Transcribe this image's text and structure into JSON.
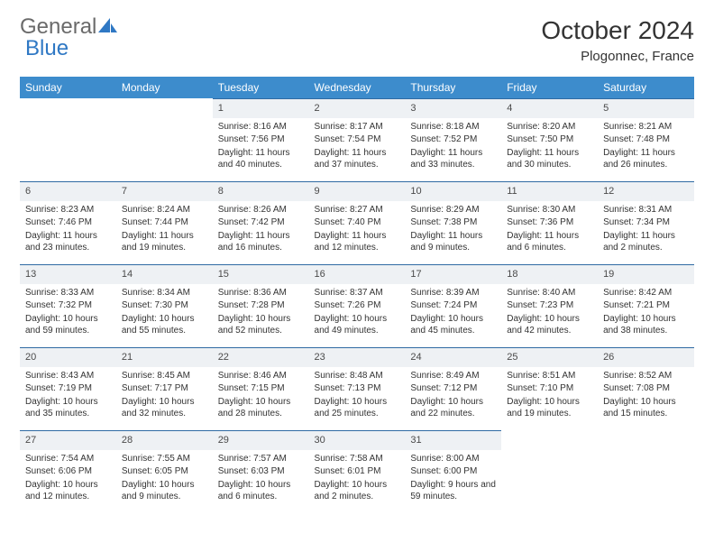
{
  "logo": {
    "part1": "General",
    "part2": "Blue"
  },
  "title": "October 2024",
  "location": "Plogonnec, France",
  "colors": {
    "header_bg": "#3d8ccc",
    "header_text": "#ffffff",
    "daynum_bg": "#eef1f4",
    "daynum_border": "#2f6aa3",
    "logo_gray": "#6a6a6a",
    "logo_blue": "#2f78c4"
  },
  "day_labels": [
    "Sunday",
    "Monday",
    "Tuesday",
    "Wednesday",
    "Thursday",
    "Friday",
    "Saturday"
  ],
  "weeks": [
    [
      {
        "n": "",
        "sr": "",
        "ss": "",
        "dl": ""
      },
      {
        "n": "",
        "sr": "",
        "ss": "",
        "dl": ""
      },
      {
        "n": "1",
        "sr": "Sunrise: 8:16 AM",
        "ss": "Sunset: 7:56 PM",
        "dl": "Daylight: 11 hours and 40 minutes."
      },
      {
        "n": "2",
        "sr": "Sunrise: 8:17 AM",
        "ss": "Sunset: 7:54 PM",
        "dl": "Daylight: 11 hours and 37 minutes."
      },
      {
        "n": "3",
        "sr": "Sunrise: 8:18 AM",
        "ss": "Sunset: 7:52 PM",
        "dl": "Daylight: 11 hours and 33 minutes."
      },
      {
        "n": "4",
        "sr": "Sunrise: 8:20 AM",
        "ss": "Sunset: 7:50 PM",
        "dl": "Daylight: 11 hours and 30 minutes."
      },
      {
        "n": "5",
        "sr": "Sunrise: 8:21 AM",
        "ss": "Sunset: 7:48 PM",
        "dl": "Daylight: 11 hours and 26 minutes."
      }
    ],
    [
      {
        "n": "6",
        "sr": "Sunrise: 8:23 AM",
        "ss": "Sunset: 7:46 PM",
        "dl": "Daylight: 11 hours and 23 minutes."
      },
      {
        "n": "7",
        "sr": "Sunrise: 8:24 AM",
        "ss": "Sunset: 7:44 PM",
        "dl": "Daylight: 11 hours and 19 minutes."
      },
      {
        "n": "8",
        "sr": "Sunrise: 8:26 AM",
        "ss": "Sunset: 7:42 PM",
        "dl": "Daylight: 11 hours and 16 minutes."
      },
      {
        "n": "9",
        "sr": "Sunrise: 8:27 AM",
        "ss": "Sunset: 7:40 PM",
        "dl": "Daylight: 11 hours and 12 minutes."
      },
      {
        "n": "10",
        "sr": "Sunrise: 8:29 AM",
        "ss": "Sunset: 7:38 PM",
        "dl": "Daylight: 11 hours and 9 minutes."
      },
      {
        "n": "11",
        "sr": "Sunrise: 8:30 AM",
        "ss": "Sunset: 7:36 PM",
        "dl": "Daylight: 11 hours and 6 minutes."
      },
      {
        "n": "12",
        "sr": "Sunrise: 8:31 AM",
        "ss": "Sunset: 7:34 PM",
        "dl": "Daylight: 11 hours and 2 minutes."
      }
    ],
    [
      {
        "n": "13",
        "sr": "Sunrise: 8:33 AM",
        "ss": "Sunset: 7:32 PM",
        "dl": "Daylight: 10 hours and 59 minutes."
      },
      {
        "n": "14",
        "sr": "Sunrise: 8:34 AM",
        "ss": "Sunset: 7:30 PM",
        "dl": "Daylight: 10 hours and 55 minutes."
      },
      {
        "n": "15",
        "sr": "Sunrise: 8:36 AM",
        "ss": "Sunset: 7:28 PM",
        "dl": "Daylight: 10 hours and 52 minutes."
      },
      {
        "n": "16",
        "sr": "Sunrise: 8:37 AM",
        "ss": "Sunset: 7:26 PM",
        "dl": "Daylight: 10 hours and 49 minutes."
      },
      {
        "n": "17",
        "sr": "Sunrise: 8:39 AM",
        "ss": "Sunset: 7:24 PM",
        "dl": "Daylight: 10 hours and 45 minutes."
      },
      {
        "n": "18",
        "sr": "Sunrise: 8:40 AM",
        "ss": "Sunset: 7:23 PM",
        "dl": "Daylight: 10 hours and 42 minutes."
      },
      {
        "n": "19",
        "sr": "Sunrise: 8:42 AM",
        "ss": "Sunset: 7:21 PM",
        "dl": "Daylight: 10 hours and 38 minutes."
      }
    ],
    [
      {
        "n": "20",
        "sr": "Sunrise: 8:43 AM",
        "ss": "Sunset: 7:19 PM",
        "dl": "Daylight: 10 hours and 35 minutes."
      },
      {
        "n": "21",
        "sr": "Sunrise: 8:45 AM",
        "ss": "Sunset: 7:17 PM",
        "dl": "Daylight: 10 hours and 32 minutes."
      },
      {
        "n": "22",
        "sr": "Sunrise: 8:46 AM",
        "ss": "Sunset: 7:15 PM",
        "dl": "Daylight: 10 hours and 28 minutes."
      },
      {
        "n": "23",
        "sr": "Sunrise: 8:48 AM",
        "ss": "Sunset: 7:13 PM",
        "dl": "Daylight: 10 hours and 25 minutes."
      },
      {
        "n": "24",
        "sr": "Sunrise: 8:49 AM",
        "ss": "Sunset: 7:12 PM",
        "dl": "Daylight: 10 hours and 22 minutes."
      },
      {
        "n": "25",
        "sr": "Sunrise: 8:51 AM",
        "ss": "Sunset: 7:10 PM",
        "dl": "Daylight: 10 hours and 19 minutes."
      },
      {
        "n": "26",
        "sr": "Sunrise: 8:52 AM",
        "ss": "Sunset: 7:08 PM",
        "dl": "Daylight: 10 hours and 15 minutes."
      }
    ],
    [
      {
        "n": "27",
        "sr": "Sunrise: 7:54 AM",
        "ss": "Sunset: 6:06 PM",
        "dl": "Daylight: 10 hours and 12 minutes."
      },
      {
        "n": "28",
        "sr": "Sunrise: 7:55 AM",
        "ss": "Sunset: 6:05 PM",
        "dl": "Daylight: 10 hours and 9 minutes."
      },
      {
        "n": "29",
        "sr": "Sunrise: 7:57 AM",
        "ss": "Sunset: 6:03 PM",
        "dl": "Daylight: 10 hours and 6 minutes."
      },
      {
        "n": "30",
        "sr": "Sunrise: 7:58 AM",
        "ss": "Sunset: 6:01 PM",
        "dl": "Daylight: 10 hours and 2 minutes."
      },
      {
        "n": "31",
        "sr": "Sunrise: 8:00 AM",
        "ss": "Sunset: 6:00 PM",
        "dl": "Daylight: 9 hours and 59 minutes."
      },
      {
        "n": "",
        "sr": "",
        "ss": "",
        "dl": ""
      },
      {
        "n": "",
        "sr": "",
        "ss": "",
        "dl": ""
      }
    ]
  ]
}
